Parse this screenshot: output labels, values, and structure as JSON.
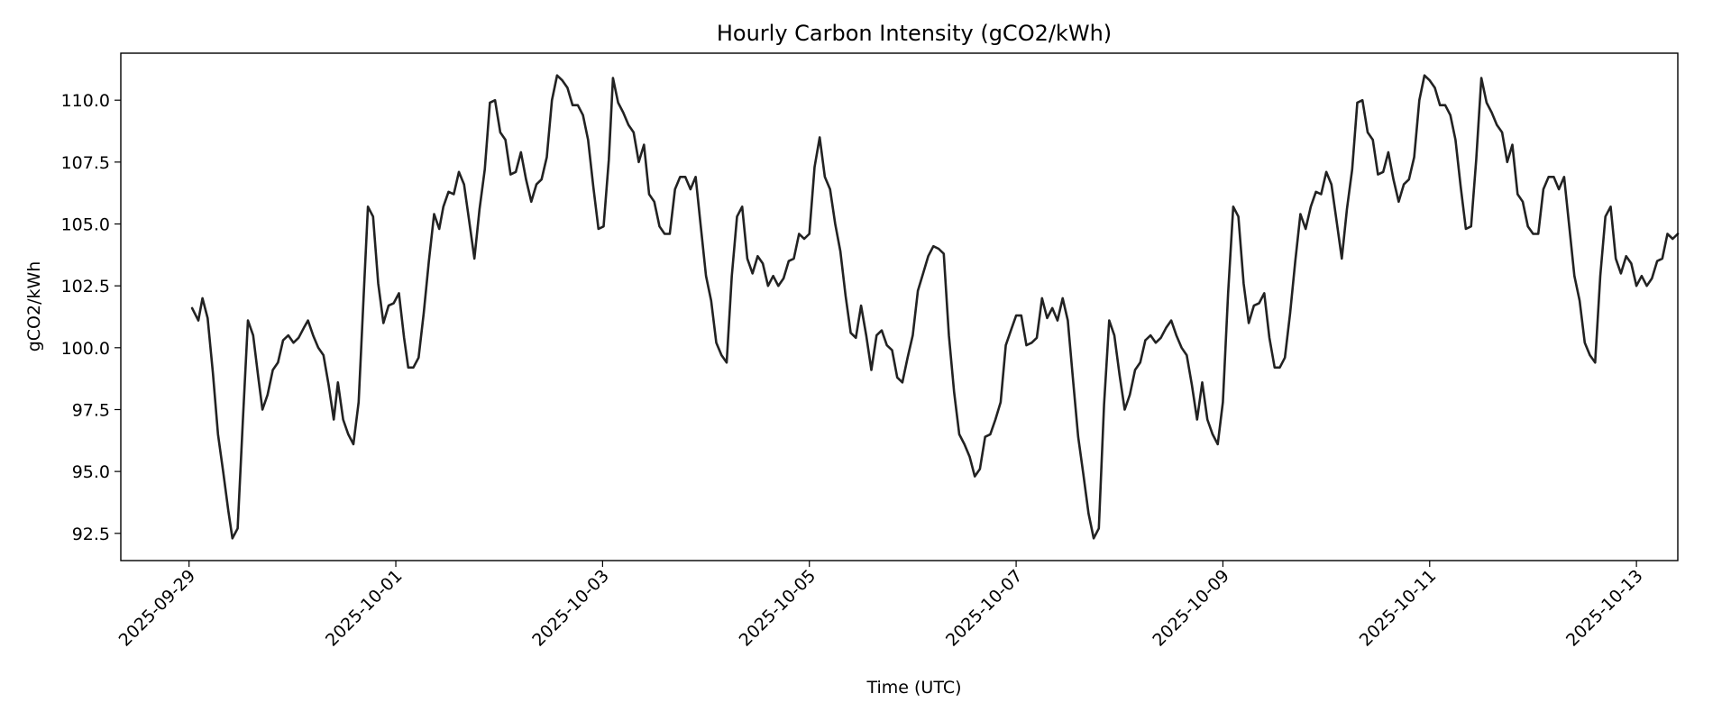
{
  "chart_data": {
    "type": "line",
    "title": "Hourly Carbon Intensity (gCO2/kWh)",
    "xlabel": "Time (UTC)",
    "ylabel": "gCO2/kWh",
    "xlim_days": [
      -0.66,
      14.4
    ],
    "ylim": [
      91.4,
      111.9
    ],
    "grid": false,
    "legend": "none",
    "x_ticks": [
      {
        "day": 0,
        "label": "2025-09-29"
      },
      {
        "day": 2,
        "label": "2025-10-01"
      },
      {
        "day": 4,
        "label": "2025-10-03"
      },
      {
        "day": 6,
        "label": "2025-10-05"
      },
      {
        "day": 8,
        "label": "2025-10-07"
      },
      {
        "day": 10,
        "label": "2025-10-09"
      },
      {
        "day": 12,
        "label": "2025-10-11"
      },
      {
        "day": 14,
        "label": "2025-10-13"
      }
    ],
    "y_ticks": [
      {
        "value": 92.5,
        "label": "92.5"
      },
      {
        "value": 95.0,
        "label": "95.0"
      },
      {
        "value": 97.5,
        "label": "97.5"
      },
      {
        "value": 100.0,
        "label": "100.0"
      },
      {
        "value": 102.5,
        "label": "102.5"
      },
      {
        "value": 105.0,
        "label": "105.0"
      },
      {
        "value": 107.5,
        "label": "107.5"
      },
      {
        "value": 110.0,
        "label": "110.0"
      }
    ],
    "series": [
      {
        "name": "Carbon Intensity",
        "color": "#222222",
        "x_unit": "days since 2025-09-29 00:00 UTC",
        "points": [
          [
            0.03,
            101.6
          ],
          [
            0.09,
            101.1
          ],
          [
            0.13,
            102.0
          ],
          [
            0.18,
            101.2
          ],
          [
            0.23,
            99.0
          ],
          [
            0.28,
            96.5
          ],
          [
            0.33,
            95.0
          ],
          [
            0.38,
            93.4
          ],
          [
            0.42,
            92.3
          ],
          [
            0.47,
            92.7
          ],
          [
            0.52,
            97.0
          ],
          [
            0.57,
            101.1
          ],
          [
            0.62,
            100.5
          ],
          [
            0.67,
            98.8
          ],
          [
            0.71,
            97.5
          ],
          [
            0.76,
            98.1
          ],
          [
            0.81,
            99.1
          ],
          [
            0.86,
            99.4
          ],
          [
            0.91,
            100.3
          ],
          [
            0.96,
            100.5
          ],
          [
            1.01,
            100.2
          ],
          [
            1.06,
            100.4
          ],
          [
            1.11,
            100.8
          ],
          [
            1.15,
            101.1
          ],
          [
            1.2,
            100.5
          ],
          [
            1.25,
            100.0
          ],
          [
            1.3,
            99.7
          ],
          [
            1.35,
            98.5
          ],
          [
            1.4,
            97.1
          ],
          [
            1.44,
            98.6
          ],
          [
            1.49,
            97.1
          ],
          [
            1.54,
            96.5
          ],
          [
            1.59,
            96.1
          ],
          [
            1.64,
            97.8
          ],
          [
            1.69,
            102.2
          ],
          [
            1.73,
            105.7
          ],
          [
            1.78,
            105.3
          ],
          [
            1.83,
            102.6
          ],
          [
            1.88,
            101.0
          ],
          [
            1.93,
            101.7
          ],
          [
            1.98,
            101.8
          ],
          [
            2.03,
            102.2
          ],
          [
            2.08,
            100.4
          ],
          [
            2.12,
            99.2
          ],
          [
            2.17,
            99.2
          ],
          [
            2.22,
            99.6
          ],
          [
            2.27,
            101.4
          ],
          [
            2.32,
            103.5
          ],
          [
            2.37,
            105.4
          ],
          [
            2.42,
            104.8
          ],
          [
            2.46,
            105.7
          ],
          [
            2.51,
            106.3
          ],
          [
            2.56,
            106.2
          ],
          [
            2.61,
            107.1
          ],
          [
            2.66,
            106.6
          ],
          [
            2.71,
            105.1
          ],
          [
            2.76,
            103.6
          ],
          [
            2.81,
            105.6
          ],
          [
            2.86,
            107.2
          ],
          [
            2.91,
            109.9
          ],
          [
            2.96,
            110.0
          ],
          [
            3.01,
            108.7
          ],
          [
            3.06,
            108.4
          ],
          [
            3.11,
            107.0
          ],
          [
            3.16,
            107.1
          ],
          [
            3.21,
            107.9
          ],
          [
            3.26,
            106.8
          ],
          [
            3.31,
            105.9
          ],
          [
            3.36,
            106.6
          ],
          [
            3.41,
            106.8
          ],
          [
            3.46,
            107.7
          ],
          [
            3.51,
            110.0
          ],
          [
            3.56,
            111.0
          ],
          [
            3.61,
            110.8
          ],
          [
            3.66,
            110.5
          ],
          [
            3.71,
            109.8
          ],
          [
            3.76,
            109.8
          ],
          [
            3.81,
            109.4
          ],
          [
            3.86,
            108.4
          ],
          [
            3.91,
            106.5
          ],
          [
            3.96,
            104.8
          ],
          [
            4.01,
            104.9
          ],
          [
            4.06,
            107.6
          ],
          [
            4.1,
            110.9
          ],
          [
            4.15,
            109.9
          ],
          [
            4.2,
            109.5
          ],
          [
            4.25,
            109.0
          ],
          [
            4.3,
            108.7
          ],
          [
            4.35,
            107.5
          ],
          [
            4.4,
            108.2
          ],
          [
            4.45,
            106.2
          ],
          [
            4.5,
            105.9
          ],
          [
            4.55,
            104.9
          ],
          [
            4.6,
            104.6
          ],
          [
            4.65,
            104.6
          ],
          [
            4.7,
            106.4
          ],
          [
            4.75,
            106.9
          ],
          [
            4.8,
            106.9
          ],
          [
            4.85,
            106.4
          ],
          [
            4.9,
            106.9
          ],
          [
            4.95,
            104.9
          ],
          [
            5.0,
            102.9
          ],
          [
            5.05,
            101.9
          ],
          [
            5.1,
            100.2
          ],
          [
            5.15,
            99.7
          ],
          [
            5.2,
            99.4
          ],
          [
            5.25,
            102.9
          ],
          [
            5.3,
            105.3
          ],
          [
            5.35,
            105.7
          ],
          [
            5.4,
            103.6
          ],
          [
            5.45,
            103.0
          ],
          [
            5.5,
            103.7
          ],
          [
            5.55,
            103.4
          ],
          [
            5.6,
            102.5
          ],
          [
            5.65,
            102.9
          ],
          [
            5.7,
            102.5
          ],
          [
            5.75,
            102.8
          ],
          [
            5.8,
            103.5
          ],
          [
            5.85,
            103.6
          ],
          [
            5.9,
            104.6
          ],
          [
            5.95,
            104.4
          ],
          [
            6.0,
            104.6
          ],
          [
            6.05,
            107.3
          ],
          [
            6.1,
            108.5
          ],
          [
            6.15,
            106.9
          ],
          [
            6.2,
            106.4
          ],
          [
            6.25,
            105.0
          ],
          [
            6.3,
            103.9
          ],
          [
            6.35,
            102.1
          ],
          [
            6.4,
            100.6
          ],
          [
            6.45,
            100.4
          ],
          [
            6.5,
            101.7
          ],
          [
            6.55,
            100.5
          ],
          [
            6.6,
            99.1
          ],
          [
            6.65,
            100.5
          ],
          [
            6.7,
            100.7
          ],
          [
            6.75,
            100.1
          ],
          [
            6.8,
            99.9
          ],
          [
            6.85,
            98.8
          ],
          [
            6.9,
            98.6
          ],
          [
            6.95,
            99.6
          ],
          [
            7.0,
            100.5
          ],
          [
            7.05,
            102.3
          ],
          [
            7.1,
            103.0
          ],
          [
            7.15,
            103.7
          ],
          [
            7.2,
            104.1
          ],
          [
            7.25,
            104.0
          ],
          [
            7.3,
            103.8
          ],
          [
            7.35,
            100.5
          ],
          [
            7.4,
            98.2
          ],
          [
            7.45,
            96.5
          ],
          [
            7.5,
            96.1
          ],
          [
            7.55,
            95.6
          ],
          [
            7.6,
            94.8
          ],
          [
            7.65,
            95.1
          ],
          [
            7.7,
            96.4
          ],
          [
            7.75,
            96.5
          ],
          [
            7.8,
            97.1
          ],
          [
            7.85,
            97.8
          ],
          [
            7.9,
            100.1
          ],
          [
            7.95,
            100.7
          ],
          [
            8.0,
            101.3
          ],
          [
            8.05,
            101.3
          ],
          [
            8.1,
            100.1
          ],
          [
            8.15,
            100.2
          ],
          [
            8.2,
            100.4
          ],
          [
            8.25,
            102.0
          ],
          [
            8.3,
            101.2
          ],
          [
            8.35,
            101.6
          ],
          [
            8.4,
            101.1
          ],
          [
            8.45,
            102.0
          ],
          [
            8.5,
            101.1
          ],
          [
            8.55,
            98.7
          ],
          [
            8.6,
            96.4
          ],
          [
            8.65,
            94.9
          ],
          [
            8.7,
            93.3
          ],
          [
            8.75,
            92.3
          ],
          [
            8.8,
            92.7
          ],
          [
            8.85,
            97.7
          ],
          [
            8.9,
            101.1
          ],
          [
            8.95,
            100.5
          ],
          [
            9.0,
            98.9
          ],
          [
            9.05,
            97.5
          ],
          [
            9.1,
            98.1
          ],
          [
            9.15,
            99.1
          ],
          [
            9.2,
            99.4
          ],
          [
            9.25,
            100.3
          ],
          [
            9.3,
            100.5
          ],
          [
            9.35,
            100.2
          ],
          [
            9.4,
            100.4
          ],
          [
            9.45,
            100.8
          ],
          [
            9.5,
            101.1
          ],
          [
            9.55,
            100.5
          ],
          [
            9.6,
            100.0
          ],
          [
            9.65,
            99.7
          ],
          [
            9.7,
            98.5
          ],
          [
            9.75,
            97.1
          ],
          [
            9.8,
            98.6
          ],
          [
            9.85,
            97.1
          ],
          [
            9.9,
            96.5
          ],
          [
            9.95,
            96.1
          ],
          [
            10.0,
            97.8
          ],
          [
            10.05,
            102.2
          ],
          [
            10.1,
            105.7
          ],
          [
            10.15,
            105.3
          ],
          [
            10.2,
            102.6
          ],
          [
            10.25,
            101.0
          ],
          [
            10.3,
            101.7
          ],
          [
            10.35,
            101.8
          ],
          [
            10.4,
            102.2
          ],
          [
            10.45,
            100.4
          ],
          [
            10.5,
            99.2
          ],
          [
            10.55,
            99.2
          ],
          [
            10.6,
            99.6
          ],
          [
            10.65,
            101.4
          ],
          [
            10.7,
            103.5
          ],
          [
            10.75,
            105.4
          ],
          [
            10.8,
            104.8
          ],
          [
            10.85,
            105.7
          ],
          [
            10.9,
            106.3
          ],
          [
            10.95,
            106.2
          ],
          [
            11.0,
            107.1
          ],
          [
            11.05,
            106.6
          ],
          [
            11.1,
            105.1
          ],
          [
            11.15,
            103.6
          ],
          [
            11.2,
            105.6
          ],
          [
            11.25,
            107.2
          ],
          [
            11.3,
            109.9
          ],
          [
            11.35,
            110.0
          ],
          [
            11.4,
            108.7
          ],
          [
            11.45,
            108.4
          ],
          [
            11.5,
            107.0
          ],
          [
            11.55,
            107.1
          ],
          [
            11.6,
            107.9
          ],
          [
            11.65,
            106.8
          ],
          [
            11.7,
            105.9
          ],
          [
            11.75,
            106.6
          ],
          [
            11.8,
            106.8
          ],
          [
            11.85,
            107.7
          ],
          [
            11.9,
            110.0
          ],
          [
            11.95,
            111.0
          ],
          [
            12.0,
            110.8
          ],
          [
            12.05,
            110.5
          ],
          [
            12.1,
            109.8
          ],
          [
            12.15,
            109.8
          ],
          [
            12.2,
            109.4
          ],
          [
            12.25,
            108.4
          ],
          [
            12.3,
            106.5
          ],
          [
            12.35,
            104.8
          ],
          [
            12.4,
            104.9
          ],
          [
            12.45,
            107.6
          ],
          [
            12.5,
            110.9
          ],
          [
            12.55,
            109.9
          ],
          [
            12.6,
            109.5
          ],
          [
            12.65,
            109.0
          ],
          [
            12.7,
            108.7
          ],
          [
            12.75,
            107.5
          ],
          [
            12.8,
            108.2
          ],
          [
            12.85,
            106.2
          ],
          [
            12.9,
            105.9
          ],
          [
            12.95,
            104.9
          ],
          [
            13.0,
            104.6
          ],
          [
            13.05,
            104.6
          ],
          [
            13.1,
            106.4
          ],
          [
            13.15,
            106.9
          ],
          [
            13.2,
            106.9
          ],
          [
            13.25,
            106.4
          ],
          [
            13.3,
            106.9
          ],
          [
            13.35,
            104.9
          ],
          [
            13.4,
            102.9
          ],
          [
            13.45,
            101.9
          ],
          [
            13.5,
            100.2
          ],
          [
            13.55,
            99.7
          ],
          [
            13.6,
            99.4
          ],
          [
            13.65,
            102.9
          ],
          [
            13.7,
            105.3
          ],
          [
            13.75,
            105.7
          ],
          [
            13.8,
            103.6
          ],
          [
            13.85,
            103.0
          ],
          [
            13.9,
            103.7
          ],
          [
            13.95,
            103.4
          ],
          [
            14.0,
            102.5
          ],
          [
            14.05,
            102.9
          ],
          [
            14.1,
            102.5
          ],
          [
            14.15,
            102.8
          ],
          [
            14.2,
            103.5
          ],
          [
            14.25,
            103.6
          ],
          [
            14.3,
            104.6
          ],
          [
            14.35,
            104.4
          ],
          [
            14.4,
            104.6
          ]
        ]
      }
    ]
  }
}
